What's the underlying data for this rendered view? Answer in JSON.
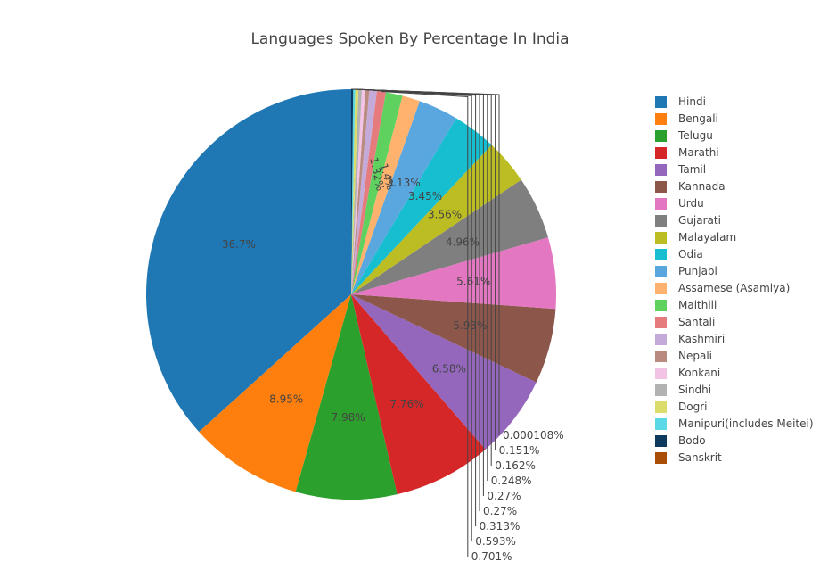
{
  "chart_data": {
    "type": "pie",
    "title": "Languages Spoken By Percentage In India",
    "legend_position": "right",
    "slices": [
      {
        "label": "Hindi",
        "value": 36.7,
        "text": "36.7%",
        "color": "#1f77b4"
      },
      {
        "label": "Bengali",
        "value": 8.95,
        "text": "8.95%",
        "color": "#ff7f0e"
      },
      {
        "label": "Telugu",
        "value": 7.98,
        "text": "7.98%",
        "color": "#2ca02c"
      },
      {
        "label": "Marathi",
        "value": 7.76,
        "text": "7.76%",
        "color": "#d62728"
      },
      {
        "label": "Tamil",
        "value": 6.58,
        "text": "6.58%",
        "color": "#9467bd"
      },
      {
        "label": "Kannada",
        "value": 5.93,
        "text": "5.93%",
        "color": "#8c564b"
      },
      {
        "label": "Urdu",
        "value": 5.61,
        "text": "5.61%",
        "color": "#e377c2"
      },
      {
        "label": "Gujarati",
        "value": 4.96,
        "text": "4.96%",
        "color": "#7f7f7f"
      },
      {
        "label": "Malayalam",
        "value": 3.56,
        "text": "3.56%",
        "color": "#bcbd22"
      },
      {
        "label": "Odia",
        "value": 3.45,
        "text": "3.45%",
        "color": "#17becf"
      },
      {
        "label": "Punjabi",
        "value": 3.13,
        "text": "3.13%",
        "color": "#5aa7e0"
      },
      {
        "label": "Assamese (Asamiya)",
        "value": 1.4,
        "text": "1.4%",
        "color": "#ffb26e"
      },
      {
        "label": "Maithili",
        "value": 1.32,
        "text": "1.32%",
        "color": "#5ed15e"
      },
      {
        "label": "Santali",
        "value": 0.701,
        "text": "0.701%",
        "color": "#e57b7c"
      },
      {
        "label": "Kashmiri",
        "value": 0.593,
        "text": "0.593%",
        "color": "#c4aad9"
      },
      {
        "label": "Nepali",
        "value": 0.313,
        "text": "0.313%",
        "color": "#b98b7f"
      },
      {
        "label": "Konkani",
        "value": 0.27,
        "text": "0.27%",
        "color": "#f2c3e4"
      },
      {
        "label": "Sindhi",
        "value": 0.27,
        "text": "0.27%",
        "color": "#b2b2b2"
      },
      {
        "label": "Dogri",
        "value": 0.248,
        "text": "0.248%",
        "color": "#dcdc6a"
      },
      {
        "label": "Manipuri(includes Meitei)",
        "value": 0.162,
        "text": "0.162%",
        "color": "#5ad8e6"
      },
      {
        "label": "Bodo",
        "value": 0.151,
        "text": "0.151%",
        "color": "#0b3a5e"
      },
      {
        "label": "Sanskrit",
        "value": 0.000108,
        "text": "0.000108%",
        "color": "#a84e06"
      }
    ]
  }
}
